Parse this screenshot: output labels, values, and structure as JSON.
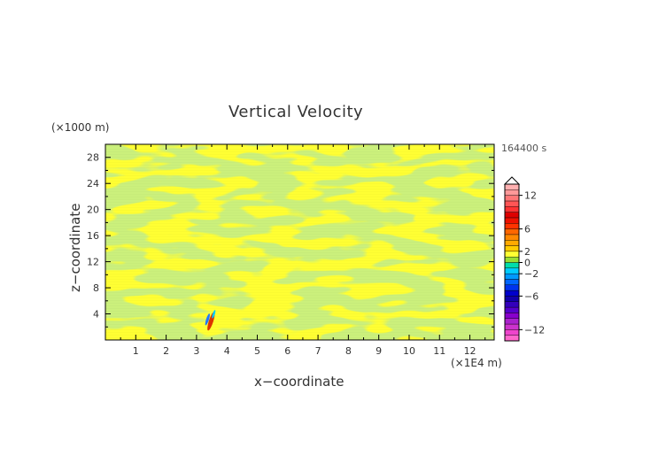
{
  "chart_data": {
    "type": "heatmap",
    "title": "Vertical Velocity",
    "xlabel": "x−coordinate",
    "ylabel": "z−coordinate",
    "x_unit": "(×1E4 m)",
    "y_unit": "(×1000 m)",
    "time_label": "164400 s",
    "xlim": [
      0,
      12.8
    ],
    "ylim": [
      0,
      30
    ],
    "x_ticks": [
      "1",
      "2",
      "3",
      "4",
      "5",
      "6",
      "7",
      "8",
      "9",
      "10",
      "11",
      "12"
    ],
    "y_ticks": [
      "4",
      "8",
      "12",
      "16",
      "20",
      "24",
      "28"
    ],
    "colorbar": {
      "levels": [
        -14,
        -13,
        -12,
        -11,
        -10,
        -9,
        -8,
        -7,
        -6,
        -5,
        -4,
        -3,
        -2,
        -1,
        0,
        1,
        2,
        3,
        4,
        5,
        6,
        7,
        8,
        9,
        10,
        11,
        12,
        13,
        14
      ],
      "colors": [
        "#ff66cc",
        "#ee44cc",
        "#cc33cc",
        "#aa22cc",
        "#8800cc",
        "#5500cc",
        "#3300bb",
        "#1100aa",
        "#0000cc",
        "#0033ee",
        "#0066ff",
        "#0099ff",
        "#00ccff",
        "#00ddaa",
        "#99dd33",
        "#ffff33",
        "#ffcc00",
        "#ffaa00",
        "#ff8800",
        "#ff6600",
        "#ff3300",
        "#ee1100",
        "#dd0000",
        "#ff3333",
        "#ff5555",
        "#ff7777",
        "#ff9999",
        "#ffb0b0"
      ],
      "tick_labels": [
        "12",
        "6",
        "2",
        "0",
        "−2",
        "−6",
        "−12"
      ],
      "tick_values": [
        12,
        6,
        2,
        0,
        -2,
        -6,
        -12
      ],
      "extend": "max"
    },
    "dominant_field": {
      "colors": [
        "#99dd33",
        "#ffff33"
      ],
      "range": [
        -1,
        1
      ]
    },
    "feature": {
      "x": 3.45,
      "z": 2.6,
      "description": "localized strong updraft/downdraft pair"
    },
    "grid": false
  }
}
